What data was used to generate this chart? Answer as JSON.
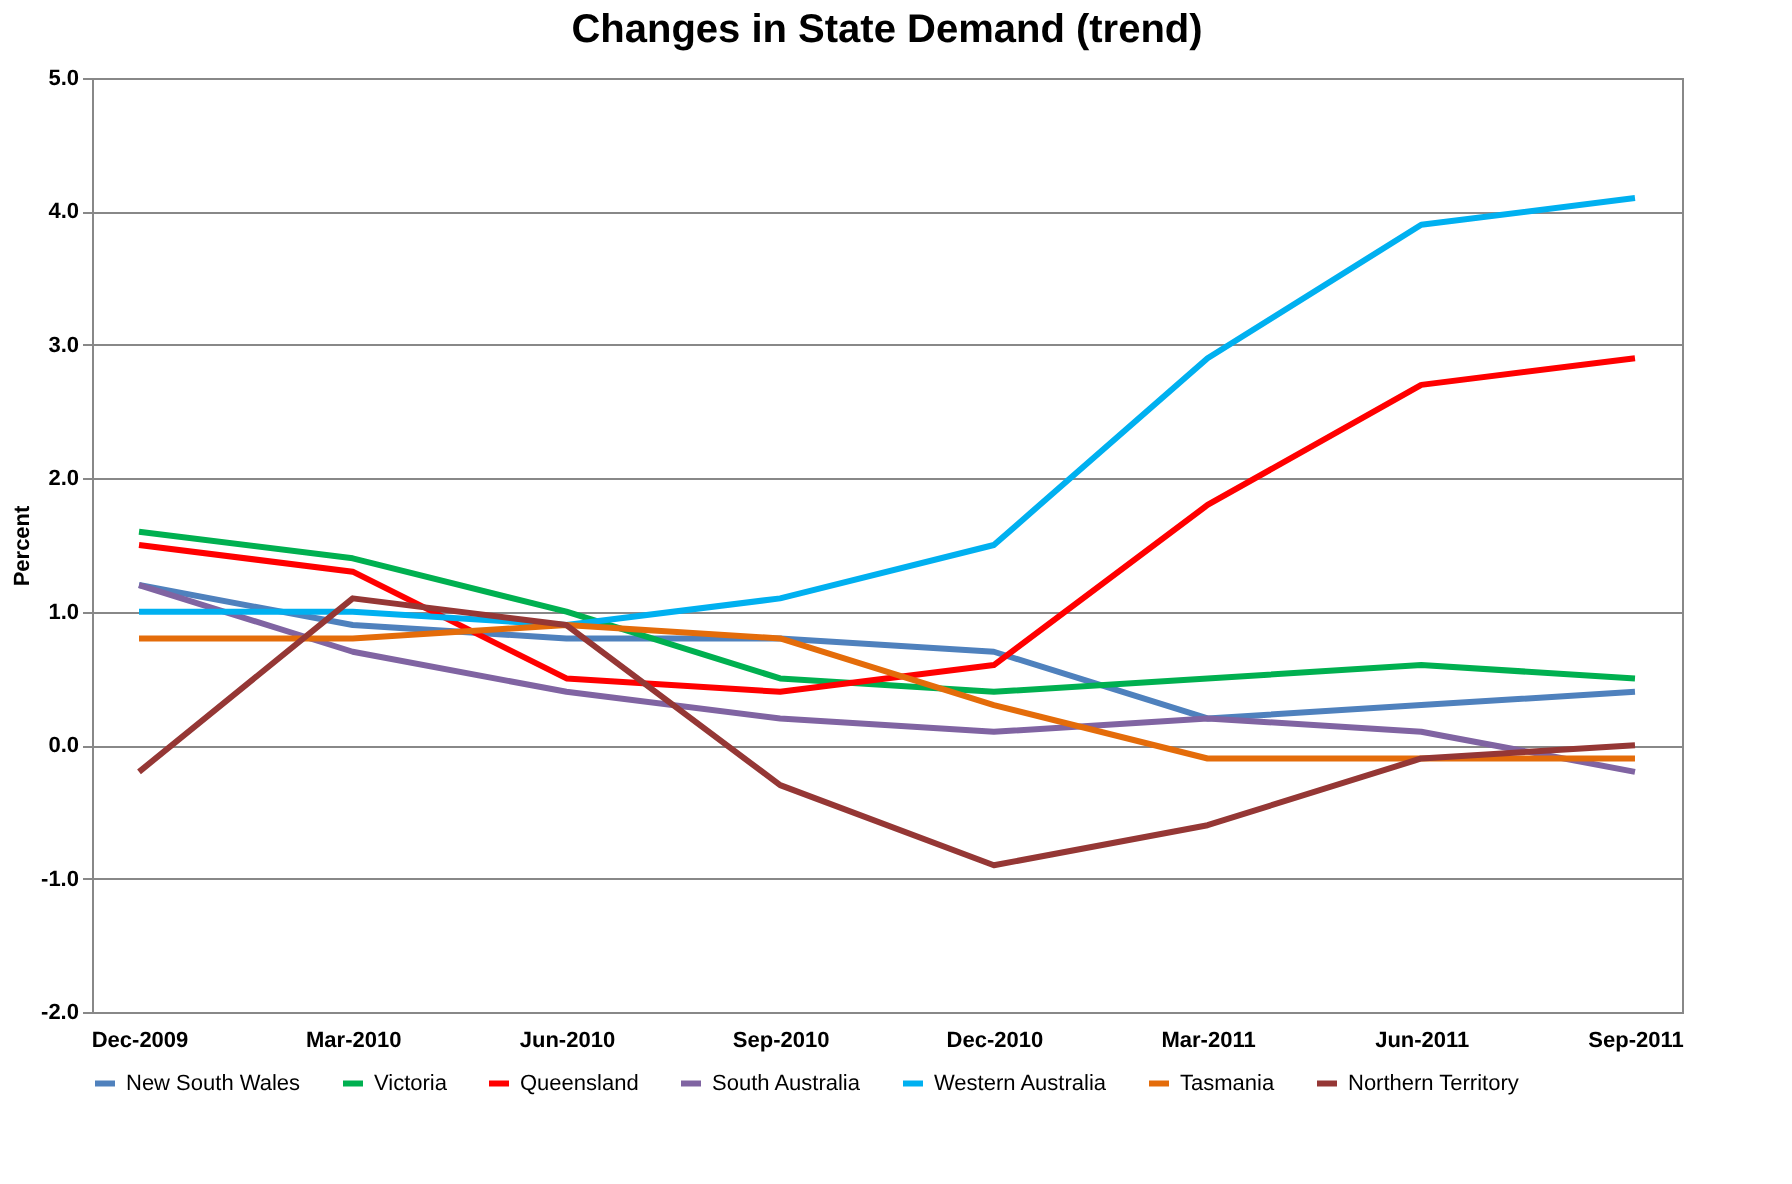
{
  "chart_data": {
    "type": "line",
    "title": "Changes in State Demand (trend)",
    "ylabel": "Percent",
    "categories": [
      "Dec-2009",
      "Mar-2010",
      "Jun-2010",
      "Sep-2010",
      "Dec-2010",
      "Mar-2011",
      "Jun-2011",
      "Sep-2011"
    ],
    "series": [
      {
        "name": "New South Wales",
        "color": "#4f81bd",
        "values": [
          1.2,
          0.9,
          0.8,
          0.8,
          0.7,
          0.2,
          0.3,
          0.4
        ]
      },
      {
        "name": "Victoria",
        "color": "#00b050",
        "values": [
          1.6,
          1.4,
          1.0,
          0.5,
          0.4,
          0.5,
          0.6,
          0.5
        ]
      },
      {
        "name": "Queensland",
        "color": "#ff0000",
        "values": [
          1.5,
          1.3,
          0.5,
          0.4,
          0.6,
          1.8,
          2.7,
          2.9
        ]
      },
      {
        "name": "South Australia",
        "color": "#8064a2",
        "values": [
          1.2,
          0.7,
          0.4,
          0.2,
          0.1,
          0.2,
          0.1,
          -0.2
        ]
      },
      {
        "name": "Western Australia",
        "color": "#00b0f0",
        "values": [
          1.0,
          1.0,
          0.9,
          1.1,
          1.5,
          2.9,
          3.9,
          4.1
        ]
      },
      {
        "name": "Tasmania",
        "color": "#e46c0a",
        "values": [
          0.8,
          0.8,
          0.9,
          0.8,
          0.3,
          -0.1,
          -0.1,
          -0.1
        ]
      },
      {
        "name": "Northern Territory",
        "color": "#953735",
        "values": [
          -0.2,
          1.1,
          0.9,
          -0.3,
          -0.9,
          -0.6,
          -0.1,
          0.0
        ]
      }
    ],
    "ylim": [
      -2,
      5
    ],
    "yticks": [
      {
        "value": -2,
        "label": "-2.0"
      },
      {
        "value": -1,
        "label": "-1.0"
      },
      {
        "value": 0,
        "label": "0.0"
      },
      {
        "value": 1,
        "label": "1.0"
      },
      {
        "value": 2,
        "label": "2.0"
      },
      {
        "value": 3,
        "label": "3.0"
      },
      {
        "value": 4,
        "label": "4.0"
      },
      {
        "value": 5,
        "label": "5.0"
      }
    ],
    "grid": "y",
    "legend": "bottom",
    "marker": "none",
    "line_style": "solid"
  }
}
